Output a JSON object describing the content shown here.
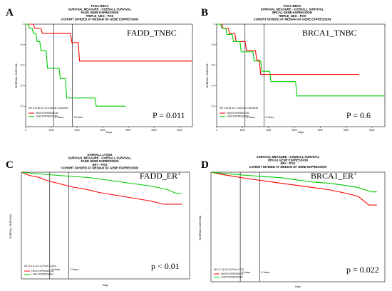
{
  "figure": {
    "background": "#ffffff",
    "high_color": "#ff0000",
    "low_color": "#00cc00"
  },
  "chart_data": [
    {
      "type": "line",
      "panel_label": "A",
      "title_lines": [
        "TCGA-BRCA",
        "SURVIVAL MEASURE - OVERALL SURVIVAL",
        "FADD GENE EXPRESSION",
        "TRIPLE_NEG - POS",
        "COHORT DIVIDED AT MEDIAN OF GENE EXPRESSION"
      ],
      "gene_label": "FADD_TNBC",
      "gene_sup": "",
      "p_value": "P = 0.011",
      "hr_text": "HR: 0.3730 (0.170-0.8)Pval: 0.0112000",
      "xlabel": "Days",
      "ylabel": "OVERALL SURVIVAL",
      "xlim": [
        0,
        6500
      ],
      "ylim": [
        0,
        1
      ],
      "xticks": [
        0,
        1000,
        2000,
        3000,
        4000,
        5000,
        6000
      ],
      "yticks": [
        0.2,
        0.4,
        0.6,
        0.8,
        1.0
      ],
      "vlines": [
        {
          "x": 1095,
          "label": "3 Years"
        },
        {
          "x": 1825,
          "label": "5 Years"
        }
      ],
      "legend": [
        "HIGH EXPRESSION",
        "LOW EXPRESSION"
      ],
      "series": [
        {
          "name": "HIGH EXPRESSION",
          "color": "#ff0000",
          "x": [
            0,
            300,
            350,
            600,
            650,
            1750,
            1800,
            2050,
            2100,
            6500
          ],
          "y": [
            1.0,
            1.0,
            0.96,
            0.96,
            0.91,
            0.91,
            0.82,
            0.82,
            0.64,
            0.64
          ]
        },
        {
          "name": "LOW EXPRESSION",
          "color": "#00cc00",
          "x": [
            0,
            100,
            150,
            250,
            300,
            400,
            450,
            550,
            600,
            800,
            850,
            1300,
            1350,
            1550,
            1600,
            2700,
            2750,
            3900
          ],
          "y": [
            1.0,
            1.0,
            0.96,
            0.96,
            0.91,
            0.91,
            0.83,
            0.83,
            0.74,
            0.74,
            0.57,
            0.57,
            0.47,
            0.47,
            0.28,
            0.28,
            0.2,
            0.2
          ]
        }
      ]
    },
    {
      "type": "line",
      "panel_label": "B",
      "title_lines": [
        "TCGA-BRCA",
        "SURVIVAL MEASURE - OVERALL SURVIVAL",
        "BRCA1 GENE EXPRESSION",
        "TRIPLE_NEG - POS",
        "COHORT DIVIDED AT MEDIAN OF GENE EXPRESSION"
      ],
      "gene_label": "BRCA1_TNBC",
      "gene_sup": "",
      "p_value": "P = 0.6",
      "hr_text": "HR: 0.8730 (0.1-1.46)Pval: 0.6019615",
      "xlabel": "Days",
      "ylabel": "OVERALL SURVIVAL",
      "xlim": [
        0,
        6500
      ],
      "ylim": [
        0,
        1
      ],
      "xticks": [
        0,
        1000,
        2000,
        3000,
        4000,
        5000,
        6000
      ],
      "yticks": [
        0.2,
        0.4,
        0.6,
        0.8,
        1.0
      ],
      "vlines": [
        {
          "x": 1095,
          "label": "3 Years"
        },
        {
          "x": 1825,
          "label": "5 Years"
        }
      ],
      "legend": [
        "HIGH EXPRESSION",
        "LOW EXPRESSION"
      ],
      "series": [
        {
          "name": "HIGH EXPRESSION",
          "color": "#ff0000",
          "x": [
            0,
            200,
            250,
            450,
            500,
            700,
            750,
            1100,
            1150,
            1500,
            1550,
            1650,
            1700,
            5500
          ],
          "y": [
            1.0,
            1.0,
            0.96,
            0.96,
            0.91,
            0.91,
            0.83,
            0.83,
            0.74,
            0.74,
            0.65,
            0.65,
            0.51,
            0.51
          ]
        },
        {
          "name": "LOW EXPRESSION",
          "color": "#00cc00",
          "x": [
            0,
            150,
            200,
            350,
            400,
            600,
            650,
            900,
            950,
            1400,
            1450,
            1700,
            1750,
            2050,
            2100,
            3050,
            3100,
            6500
          ],
          "y": [
            1.0,
            1.0,
            0.96,
            0.96,
            0.9,
            0.9,
            0.83,
            0.83,
            0.73,
            0.73,
            0.64,
            0.64,
            0.54,
            0.54,
            0.44,
            0.44,
            0.3,
            0.3
          ]
        }
      ]
    },
    {
      "type": "line",
      "panel_label": "C",
      "title_lines": [
        "OVERALL LYONS",
        "SURVIVAL MEASURE - OVERALL SURVIVAL",
        "FADD GENE EXPRESSION",
        "ER+ - POS",
        "COHORT DIVIDED AT MEDIAN OF GENE EXPRESSION"
      ],
      "gene_label": "FADD_ER",
      "gene_sup": "+",
      "p_value": "p < 0.01",
      "hr_text": "HR: 0.6 (1.12-1.8) Pval: 0.0053",
      "xlabel": "Days",
      "ylabel": "OVERALL SURVIVAL",
      "xlim": [
        0,
        6500
      ],
      "ylim": [
        0,
        1
      ],
      "xticks": [],
      "yticks": [],
      "vlines": [
        {
          "x": 1095,
          "label": "3 Years"
        },
        {
          "x": 1825,
          "label": "5 Years"
        }
      ],
      "legend": [
        "HIGH EXPRESSION",
        "LOW EXPRESSION"
      ],
      "series": [
        {
          "name": "HIGH EXPRESSION",
          "color": "#ff0000",
          "x": [
            0,
            300,
            700,
            1000,
            1500,
            2000,
            2500,
            3000,
            3500,
            4000,
            4500,
            5000,
            5500,
            6200
          ],
          "y": [
            1.0,
            0.97,
            0.95,
            0.92,
            0.89,
            0.86,
            0.84,
            0.81,
            0.79,
            0.77,
            0.75,
            0.73,
            0.7,
            0.7
          ]
        },
        {
          "name": "LOW EXPRESSION",
          "color": "#00cc00",
          "x": [
            0,
            400,
            900,
            1400,
            2000,
            2600,
            3200,
            3800,
            4400,
            5000,
            5600,
            6000,
            6200
          ],
          "y": [
            1.0,
            0.99,
            0.98,
            0.97,
            0.96,
            0.95,
            0.93,
            0.91,
            0.89,
            0.87,
            0.84,
            0.8,
            0.8
          ]
        }
      ]
    },
    {
      "type": "line",
      "panel_label": "D",
      "title_lines": [
        "SURVIVAL MEASURE - OVERALL SURVIVAL",
        "BRCA1 GENE EXPRESSION",
        "ER+ - POS",
        "COHORT DIVIDED AT MEDIAN OF GENE EXPRESSION"
      ],
      "gene_label": "BRCA1_ER",
      "gene_sup": "+",
      "p_value": "p = 0.022",
      "hr_text": "HR: 0.7 (1.05-1.6) Pval: 0.022",
      "xlabel": "Days",
      "ylabel": "OVERALL SURVIVAL",
      "xlim": [
        0,
        6500
      ],
      "ylim": [
        0,
        1
      ],
      "xticks": [],
      "yticks": [],
      "vlines": [
        {
          "x": 1095,
          "label": "3 Years"
        },
        {
          "x": 1825,
          "label": "5 Years"
        }
      ],
      "legend": [
        "HIGH EXPRESSION",
        "LOW EXPRESSION"
      ],
      "series": [
        {
          "name": "HIGH EXPRESSION",
          "color": "#ff0000",
          "x": [
            0,
            400,
            900,
            1400,
            2000,
            2600,
            3200,
            3800,
            4400,
            5000,
            5500,
            5900,
            6200
          ],
          "y": [
            1.0,
            0.98,
            0.96,
            0.94,
            0.92,
            0.9,
            0.88,
            0.86,
            0.84,
            0.81,
            0.78,
            0.7,
            0.7
          ]
        },
        {
          "name": "LOW EXPRESSION",
          "color": "#00cc00",
          "x": [
            0,
            400,
            900,
            1400,
            2000,
            2600,
            3200,
            3800,
            4400,
            5000,
            5500,
            6000,
            6200
          ],
          "y": [
            1.0,
            0.99,
            0.98,
            0.97,
            0.96,
            0.95,
            0.93,
            0.91,
            0.9,
            0.88,
            0.86,
            0.82,
            0.82
          ]
        }
      ]
    }
  ]
}
